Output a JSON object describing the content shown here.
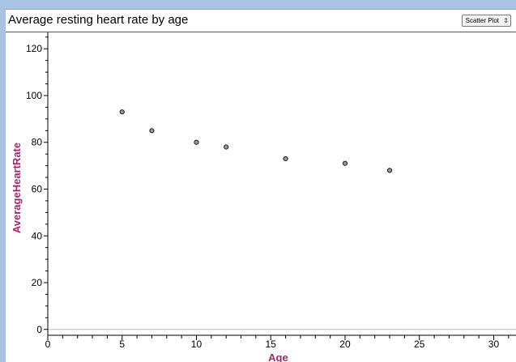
{
  "header": {
    "title": "Average resting heart rate by age",
    "plot_type_label": "Scatter Plot"
  },
  "chart_data": {
    "type": "scatter",
    "title": "Average resting heart rate by age",
    "xlabel": "Age",
    "ylabel": "AverageHeartRate",
    "xlim": [
      0,
      31.5
    ],
    "ylim": [
      -2.5,
      127
    ],
    "x_ticks": [
      0,
      5,
      10,
      15,
      20,
      25,
      30
    ],
    "y_ticks": [
      0,
      20,
      40,
      60,
      80,
      100,
      120
    ],
    "x_minor_step": 1,
    "y_minor_step": 5,
    "grid": false,
    "series": [
      {
        "points": [
          {
            "x": 5,
            "y": 93
          },
          {
            "x": 7,
            "y": 85
          },
          {
            "x": 10,
            "y": 80
          },
          {
            "x": 12,
            "y": 78
          },
          {
            "x": 16,
            "y": 73
          },
          {
            "x": 20,
            "y": 71
          },
          {
            "x": 23,
            "y": 68
          }
        ]
      }
    ],
    "colors": {
      "axis_title": "#9b2a6b",
      "point_fill": "#9a9a9a",
      "point_stroke": "#1a1a1a",
      "zero_line": "#b5b5b5"
    }
  }
}
